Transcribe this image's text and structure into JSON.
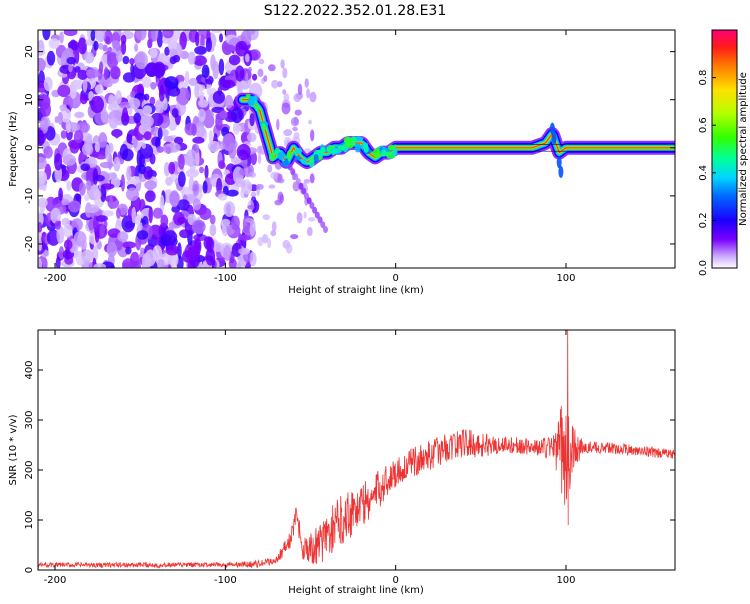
{
  "title": "S122.2022.352.01.28.E31",
  "chart_data": [
    {
      "type": "heatmap",
      "xlabel": "Height of straight line (km)",
      "ylabel": "Frequency (Hz)",
      "xlim": [
        -210,
        164
      ],
      "ylim": [
        -25,
        24.5
      ],
      "xticks": [
        -200,
        -100,
        0,
        100
      ],
      "yticks": [
        -20,
        -10,
        0,
        10,
        20
      ],
      "colorbar": {
        "label": "Normalized spectral amplitude",
        "range": [
          0,
          1
        ],
        "ticks": [
          0.0,
          0.2,
          0.4,
          0.6,
          0.8
        ]
      },
      "ridge": {
        "x": [
          -90,
          -85,
          -80,
          -76,
          -72,
          -68,
          -64,
          -60,
          -56,
          -52,
          -48,
          -44,
          -40,
          -36,
          -32,
          -28,
          -24,
          -20,
          -16,
          -12,
          -8,
          -4,
          0,
          20,
          40,
          60,
          80,
          88,
          92,
          96,
          100,
          120,
          140,
          164
        ],
        "y": [
          10,
          10,
          8,
          3,
          -2,
          -1,
          -3,
          0,
          -2,
          -3,
          -2,
          -1,
          -1,
          0,
          0,
          1,
          1,
          1,
          -1,
          -2,
          -1,
          -1,
          0,
          0,
          0,
          0,
          0,
          1,
          3,
          -1,
          0,
          0,
          0,
          0
        ]
      },
      "noise_region_x": [
        -210,
        -88
      ]
    },
    {
      "type": "line",
      "xlabel": "Height of straight line (km)",
      "ylabel": "SNR (10 * v/v)",
      "xlim": [
        -210,
        164
      ],
      "ylim": [
        0,
        480
      ],
      "xticks": [
        -200,
        -100,
        0,
        100
      ],
      "yticks": [
        0,
        100,
        200,
        300,
        400
      ],
      "series": [
        {
          "color": "#ee3333",
          "envelope": {
            "x": [
              -210,
              -150,
              -100,
              -80,
              -70,
              -62,
              -58,
              -55,
              -50,
              -45,
              -40,
              -35,
              -30,
              -25,
              -20,
              -15,
              -10,
              -5,
              0,
              10,
              20,
              30,
              40,
              50,
              60,
              70,
              80,
              90,
              96,
              100,
              103,
              110,
              120,
              140,
              164
            ],
            "y": [
              10,
              10,
              10,
              12,
              20,
              60,
              110,
              50,
              40,
              50,
              70,
              90,
              110,
              120,
              130,
              140,
              160,
              180,
              195,
              215,
              230,
              245,
              255,
              250,
              250,
              250,
              245,
              245,
              250,
              230,
              240,
              245,
              245,
              240,
              230
            ]
          },
          "amplitude": {
            "x": [
              -210,
              -100,
              -70,
              -50,
              -30,
              -10,
              0,
              20,
              40,
              60,
              80,
              90,
              96,
              100,
              103,
              110,
              164
            ],
            "y": [
              5,
              5,
              8,
              35,
              55,
              40,
              30,
              30,
              30,
              20,
              15,
              25,
              60,
              150,
              60,
              12,
              10
            ]
          }
        }
      ]
    }
  ]
}
